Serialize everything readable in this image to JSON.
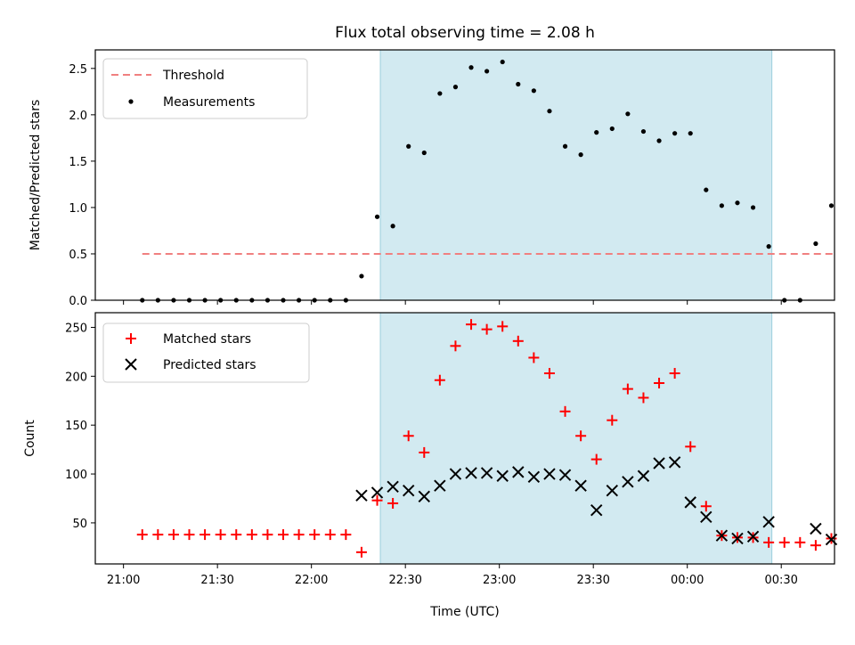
{
  "chart_data": [
    {
      "type": "scatter",
      "title": "Flux total observing time = 2.08 h",
      "xlabel": "",
      "ylabel": "Matched/Predicted stars",
      "ylim": [
        0,
        2.7
      ],
      "yticks": [
        "0.0",
        "0.5",
        "1.0",
        "1.5",
        "2.0",
        "2.5"
      ],
      "grid": false,
      "legend_position": "upper-left",
      "shaded_span": {
        "start": "22:22",
        "end": "00:27",
        "color": "#add8e6"
      },
      "threshold": {
        "name": "Threshold",
        "value": 0.5,
        "x_start": "21:06",
        "x_end": "00:47",
        "color": "#f08080",
        "style": "dashed"
      },
      "series": [
        {
          "name": "Measurements",
          "marker": "dot",
          "color": "#000000",
          "x": [
            "21:06",
            "21:11",
            "21:16",
            "21:21",
            "21:26",
            "21:31",
            "21:36",
            "21:41",
            "21:46",
            "21:51",
            "21:56",
            "22:01",
            "22:06",
            "22:11",
            "22:16",
            "22:21",
            "22:26",
            "22:31",
            "22:36",
            "22:41",
            "22:46",
            "22:51",
            "22:56",
            "23:01",
            "23:06",
            "23:11",
            "23:16",
            "23:21",
            "23:26",
            "23:31",
            "23:36",
            "23:41",
            "23:46",
            "23:51",
            "23:56",
            "00:01",
            "00:06",
            "00:11",
            "00:16",
            "00:21",
            "00:26",
            "00:31",
            "00:36",
            "00:41",
            "00:46"
          ],
          "values": [
            0.0,
            0.0,
            0.0,
            0.0,
            0.0,
            0.0,
            0.0,
            0.0,
            0.0,
            0.0,
            0.0,
            0.0,
            0.0,
            0.0,
            0.26,
            0.9,
            0.8,
            1.66,
            1.59,
            2.23,
            2.3,
            2.51,
            2.47,
            2.57,
            2.33,
            2.26,
            2.04,
            1.66,
            1.57,
            1.81,
            1.85,
            2.01,
            1.82,
            1.72,
            1.8,
            1.8,
            1.19,
            1.02,
            1.05,
            1.0,
            0.58,
            0.0,
            0.0,
            0.61,
            1.02
          ]
        }
      ]
    },
    {
      "type": "scatter",
      "title": "",
      "xlabel": "Time (UTC)",
      "ylabel": "Count",
      "ylim": [
        8,
        265
      ],
      "yticks": [
        "50",
        "100",
        "150",
        "200",
        "250"
      ],
      "xticks": [
        "21:00",
        "21:30",
        "22:00",
        "22:30",
        "23:00",
        "23:30",
        "00:00",
        "00:30"
      ],
      "grid": false,
      "legend_position": "upper-left",
      "shaded_span": {
        "start": "22:22",
        "end": "00:27",
        "color": "#add8e6"
      },
      "series": [
        {
          "name": "Matched stars",
          "marker": "plus",
          "color": "#ff0000",
          "x": [
            "21:06",
            "21:11",
            "21:16",
            "21:21",
            "21:26",
            "21:31",
            "21:36",
            "21:41",
            "21:46",
            "21:51",
            "21:56",
            "22:01",
            "22:06",
            "22:11",
            "22:16",
            "22:21",
            "22:26",
            "22:31",
            "22:36",
            "22:41",
            "22:46",
            "22:51",
            "22:56",
            "23:01",
            "23:06",
            "23:11",
            "23:16",
            "23:21",
            "23:26",
            "23:31",
            "23:36",
            "23:41",
            "23:46",
            "23:51",
            "23:56",
            "00:01",
            "00:06",
            "00:11",
            "00:16",
            "00:21",
            "00:26",
            "00:31",
            "00:36",
            "00:41",
            "00:46"
          ],
          "values": [
            38,
            38,
            38,
            38,
            38,
            38,
            38,
            38,
            38,
            38,
            38,
            38,
            38,
            38,
            20,
            73,
            70,
            139,
            122,
            196,
            231,
            253,
            248,
            251,
            236,
            219,
            203,
            164,
            139,
            115,
            155,
            187,
            178,
            193,
            203,
            128,
            67,
            37,
            35,
            35,
            30,
            30,
            30,
            27,
            34
          ]
        },
        {
          "name": "Predicted stars",
          "marker": "x",
          "color": "#000000",
          "x": [
            "22:16",
            "22:21",
            "22:26",
            "22:31",
            "22:36",
            "22:41",
            "22:46",
            "22:51",
            "22:56",
            "23:01",
            "23:06",
            "23:11",
            "23:16",
            "23:21",
            "23:26",
            "23:31",
            "23:36",
            "23:41",
            "23:46",
            "23:51",
            "23:56",
            "00:01",
            "00:06",
            "00:11",
            "00:16",
            "00:21",
            "00:26",
            "00:41",
            "00:46"
          ],
          "values": [
            78,
            81,
            87,
            83,
            77,
            88,
            100,
            101,
            101,
            98,
            102,
            97,
            100,
            99,
            88,
            63,
            83,
            92,
            98,
            111,
            112,
            71,
            56,
            37,
            34,
            36,
            51,
            44,
            33
          ]
        }
      ]
    }
  ]
}
